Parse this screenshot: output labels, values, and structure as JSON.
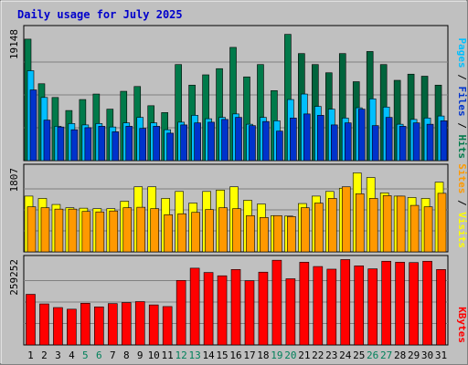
{
  "chart_data": {
    "type": "bar",
    "title": "Daily usage for July 2025",
    "categories": [
      "1",
      "2",
      "3",
      "4",
      "5",
      "6",
      "7",
      "8",
      "9",
      "10",
      "11",
      "12",
      "13",
      "14",
      "15",
      "16",
      "17",
      "18",
      "19",
      "20",
      "21",
      "22",
      "23",
      "24",
      "25",
      "26",
      "27",
      "28",
      "29",
      "30",
      "31"
    ],
    "weekend_days": [
      "5",
      "6",
      "12",
      "13",
      "19",
      "20",
      "26",
      "27"
    ],
    "panels": [
      {
        "id": "hits-files-pages",
        "ytick": "19148",
        "ymax": 19148,
        "legend": [
          "Pages",
          "Files",
          "Hits"
        ],
        "series": [
          {
            "name": "Hits",
            "color": "#007a4a",
            "values": [
              17700,
              11200,
              9200,
              7300,
              8900,
              9700,
              7500,
              10100,
              10800,
              8000,
              7000,
              14000,
              11000,
              12500,
              13400,
              16500,
              12200,
              14000,
              10200,
              18400,
              15600,
              14000,
              12800,
              15600,
              11500,
              15900,
              14000,
              11700,
              12600,
              12300,
              11000
            ]
          },
          {
            "name": "Files",
            "color": "#00bfff",
            "values": [
              13100,
              9200,
              5000,
              5400,
              5200,
              5400,
              4900,
              5500,
              6300,
              5500,
              4500,
              5600,
              6600,
              6100,
              6300,
              6800,
              5300,
              6300,
              5800,
              8900,
              9700,
              7900,
              7500,
              6200,
              7700,
              9000,
              7800,
              5300,
              6000,
              6200,
              6500
            ]
          },
          {
            "name": "Pages",
            "color": "#0033cc",
            "values": [
              10300,
              5900,
              4900,
              4500,
              4800,
              5000,
              4200,
              5000,
              4700,
              5000,
              4000,
              5200,
              5500,
              5600,
              6000,
              6300,
              5100,
              5700,
              4300,
              6200,
              6800,
              6600,
              5200,
              5500,
              7500,
              5100,
              6300,
              5000,
              5500,
              5300,
              5800
            ]
          }
        ],
        "hits_dark_from": 20,
        "hits_dark_color": "#00643c"
      },
      {
        "id": "visits-sites",
        "ytick": "1807",
        "ymax": 1807,
        "legend": [
          "Sites",
          "Visits"
        ],
        "series": [
          {
            "name": "Visits",
            "color": "#ffff00",
            "values": [
              1200,
              1150,
              1020,
              950,
              940,
              930,
              930,
              1090,
              1400,
              1400,
              1150,
              1300,
              1050,
              1300,
              1330,
              1400,
              1110,
              1030,
              780,
              770,
              1040,
              1200,
              1300,
              1370,
              1700,
              1600,
              1270,
              1200,
              1170,
              1150,
              1500
            ]
          },
          {
            "name": "Sites",
            "color": "#ff9900",
            "values": [
              970,
              950,
              920,
              920,
              870,
              860,
              880,
              950,
              960,
              930,
              800,
              820,
              850,
              910,
              950,
              930,
              780,
              740,
              780,
              760,
              950,
              1050,
              1150,
              1400,
              1250,
              1150,
              1210,
              1200,
              1000,
              970,
              1260
            ]
          }
        ]
      },
      {
        "id": "kbytes",
        "ytick": "259252",
        "ymax": 259252,
        "legend": [
          "KBytes"
        ],
        "series": [
          {
            "name": "KBytes",
            "color": "#ff0000",
            "values": [
              153000,
              124000,
              113000,
              108000,
              126000,
              115000,
              125000,
              128000,
              131000,
              121000,
              116000,
              195000,
              232000,
              219000,
              209000,
              228000,
              194000,
              220000,
              256000,
              200000,
              250000,
              237000,
              229000,
              258000,
              239000,
              230000,
              253000,
              250000,
              249000,
              253000,
              228000
            ]
          }
        ]
      }
    ]
  }
}
